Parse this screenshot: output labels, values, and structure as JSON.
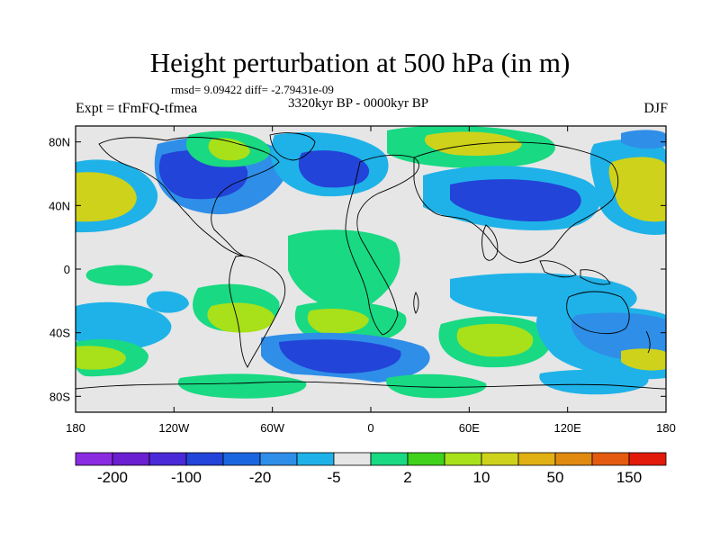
{
  "title": "Height perturbation at 500 hPa (in m)",
  "stats": "rmsd= 9.09422 diff= -2.79431e-09",
  "experiment": "Expt = tFmFQ-tfmea",
  "period": "3320kyr BP - 0000kyr BP",
  "season": "DJF",
  "x_ticks": [
    "180",
    "120W",
    "60W",
    "0",
    "60E",
    "120E",
    "180"
  ],
  "y_ticks": [
    "80N",
    "40N",
    "0",
    "40S",
    "80S"
  ],
  "colorbar": {
    "colors": [
      "#8a2be2",
      "#6a1fd0",
      "#4a2ad8",
      "#2244d8",
      "#1a66e0",
      "#2f8ee8",
      "#1fb2e8",
      "#e6e6e6",
      "#19d982",
      "#40d21c",
      "#a8e01a",
      "#cfd21a",
      "#e0b014",
      "#e08a10",
      "#e45a10",
      "#e21a0a"
    ],
    "labels": [
      "-200",
      "-100",
      "-20",
      "-5",
      "2",
      "10",
      "50",
      "150"
    ]
  }
}
